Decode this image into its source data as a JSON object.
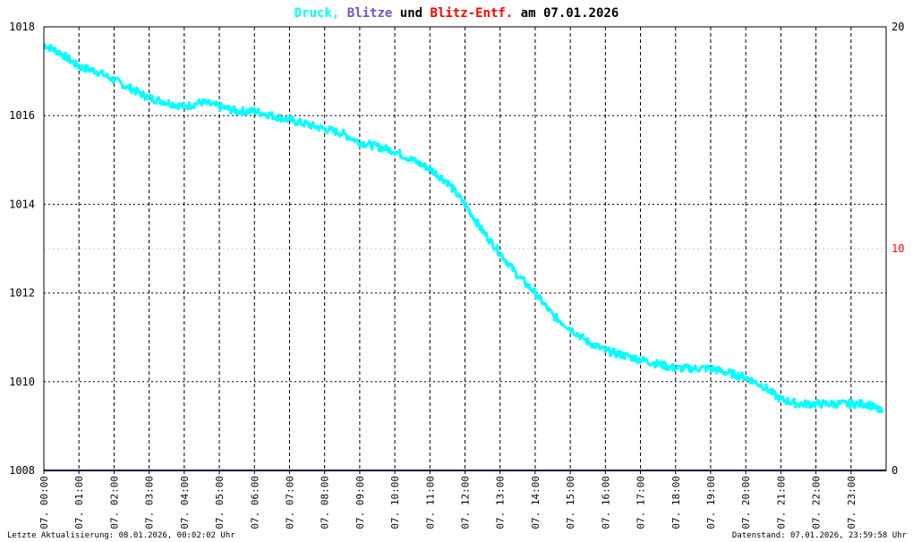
{
  "title": {
    "part1": "Druck",
    "sep1": ",",
    "part2": "Blitze",
    "part3": "und",
    "part4": "Blitz-Entf.",
    "part5": "am 07.01.2026"
  },
  "colors": {
    "druck": "#00ffff",
    "blitze": "#6a5acd",
    "entf": "#ff0000",
    "text": "#000000",
    "axis": "#000000",
    "baseline": "#00007f"
  },
  "footer": {
    "left": "Letzte Aktualisierung: 08.01.2026, 00:02:02 Uhr",
    "right": "Datenstand: 07.01.2026, 23:59:58 Uhr"
  },
  "chart_data": {
    "type": "line",
    "title": "Druck, Blitze und Blitz-Entf. am 07.01.2026",
    "y_left": {
      "ticks": [
        "1008",
        "1010",
        "1012",
        "1014",
        "1016",
        "1018"
      ],
      "range": [
        1008,
        1018
      ]
    },
    "y_right": {
      "ticks": [
        "0",
        "10",
        "20"
      ],
      "range": [
        0,
        20
      ]
    },
    "x_range": [
      0,
      24
    ],
    "x_ticks": [
      "07. 00:00",
      "07. 01:00",
      "07. 02:00",
      "07. 03:00",
      "07. 04:00",
      "07. 05:00",
      "07. 06:00",
      "07. 07:00",
      "07. 08:00",
      "07. 09:00",
      "07. 10:00",
      "07. 11:00",
      "07. 12:00",
      "07. 13:00",
      "07. 14:00",
      "07. 15:00",
      "07. 16:00",
      "07. 17:00",
      "07. 18:00",
      "07. 19:00",
      "07. 20:00",
      "07. 21:00",
      "07. 22:00",
      "07. 23:00"
    ],
    "grid": true,
    "series": [
      {
        "name": "Druck",
        "x": [
          0.0,
          0.5,
          1.0,
          1.5,
          2.0,
          2.5,
          3.0,
          3.5,
          4.0,
          4.5,
          5.0,
          5.5,
          6.0,
          6.5,
          7.0,
          7.5,
          8.0,
          8.5,
          9.0,
          9.5,
          10.0,
          10.5,
          11.0,
          11.5,
          12.0,
          12.5,
          13.0,
          13.5,
          14.0,
          14.5,
          15.0,
          15.5,
          16.0,
          16.5,
          17.0,
          17.5,
          18.0,
          18.5,
          19.0,
          19.5,
          20.0,
          20.5,
          21.0,
          21.5,
          22.0,
          22.5,
          23.0,
          23.5,
          23.9
        ],
        "y": [
          1017.6,
          1017.4,
          1017.1,
          1017.0,
          1016.8,
          1016.6,
          1016.4,
          1016.3,
          1016.2,
          1016.3,
          1016.2,
          1016.1,
          1016.1,
          1016.0,
          1015.9,
          1015.8,
          1015.7,
          1015.6,
          1015.4,
          1015.3,
          1015.2,
          1015.0,
          1014.8,
          1014.5,
          1014.0,
          1013.4,
          1012.9,
          1012.4,
          1012.0,
          1011.5,
          1011.2,
          1010.9,
          1010.7,
          1010.6,
          1010.5,
          1010.4,
          1010.3,
          1010.3,
          1010.3,
          1010.2,
          1010.1,
          1009.9,
          1009.6,
          1009.5,
          1009.5,
          1009.5,
          1009.5,
          1009.5,
          1009.3
        ]
      },
      {
        "name": "Blitze",
        "x": [
          0,
          24
        ],
        "y": [
          0,
          0
        ]
      },
      {
        "name": "Blitz-Entf.",
        "x": [],
        "y": []
      }
    ]
  }
}
